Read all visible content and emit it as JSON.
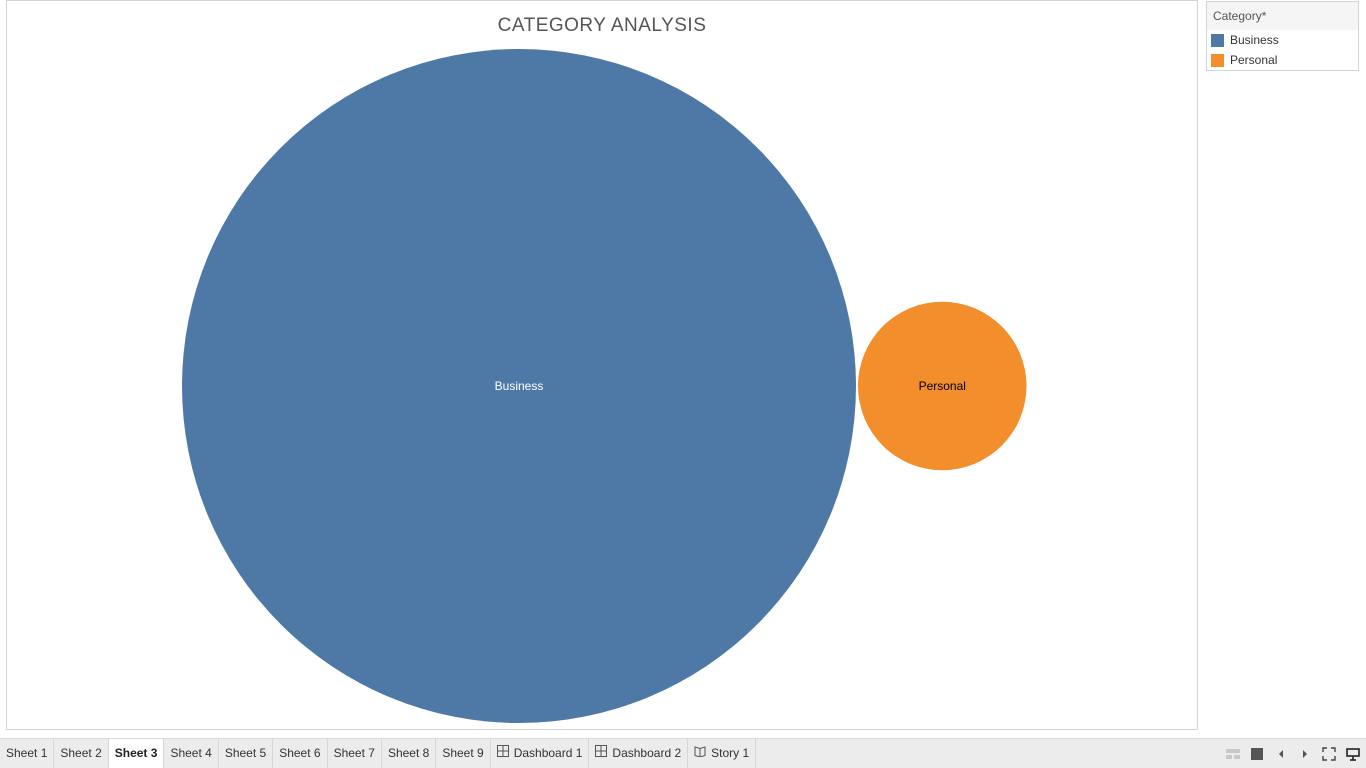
{
  "chart_data": {
    "type": "bubble",
    "title": "CATEGORY ANALYSIS",
    "categories": [
      "Business",
      "Personal"
    ],
    "values": [
      16,
      1
    ],
    "colors": [
      "#4e79a7",
      "#f28e2b"
    ],
    "label_colors": [
      "#ffffff",
      "#000000"
    ],
    "value_note": "relative bubble sizes estimated from area (no values printed)"
  },
  "legend": {
    "title": "Category*",
    "items": [
      {
        "label": "Business",
        "color": "#4e79a7"
      },
      {
        "label": "Personal",
        "color": "#f28e2b"
      }
    ]
  },
  "tabs": [
    {
      "label": "Sheet 1",
      "icon": "",
      "active": false
    },
    {
      "label": "Sheet 2",
      "icon": "",
      "active": false
    },
    {
      "label": "Sheet 3",
      "icon": "",
      "active": true
    },
    {
      "label": "Sheet 4",
      "icon": "",
      "active": false
    },
    {
      "label": "Sheet 5",
      "icon": "",
      "active": false
    },
    {
      "label": "Sheet 6",
      "icon": "",
      "active": false
    },
    {
      "label": "Sheet 7",
      "icon": "",
      "active": false
    },
    {
      "label": "Sheet 8",
      "icon": "",
      "active": false
    },
    {
      "label": "Sheet 9",
      "icon": "",
      "active": false
    },
    {
      "label": "Dashboard 1",
      "icon": "dashboard-icon",
      "active": false
    },
    {
      "label": "Dashboard 2",
      "icon": "dashboard-icon",
      "active": false
    },
    {
      "label": "Story 1",
      "icon": "story-icon",
      "active": false
    }
  ],
  "controls": [
    "filmstrip-icon",
    "tabs-icon",
    "prev-icon",
    "next-icon",
    "fullscreen-icon",
    "presentation-icon"
  ]
}
